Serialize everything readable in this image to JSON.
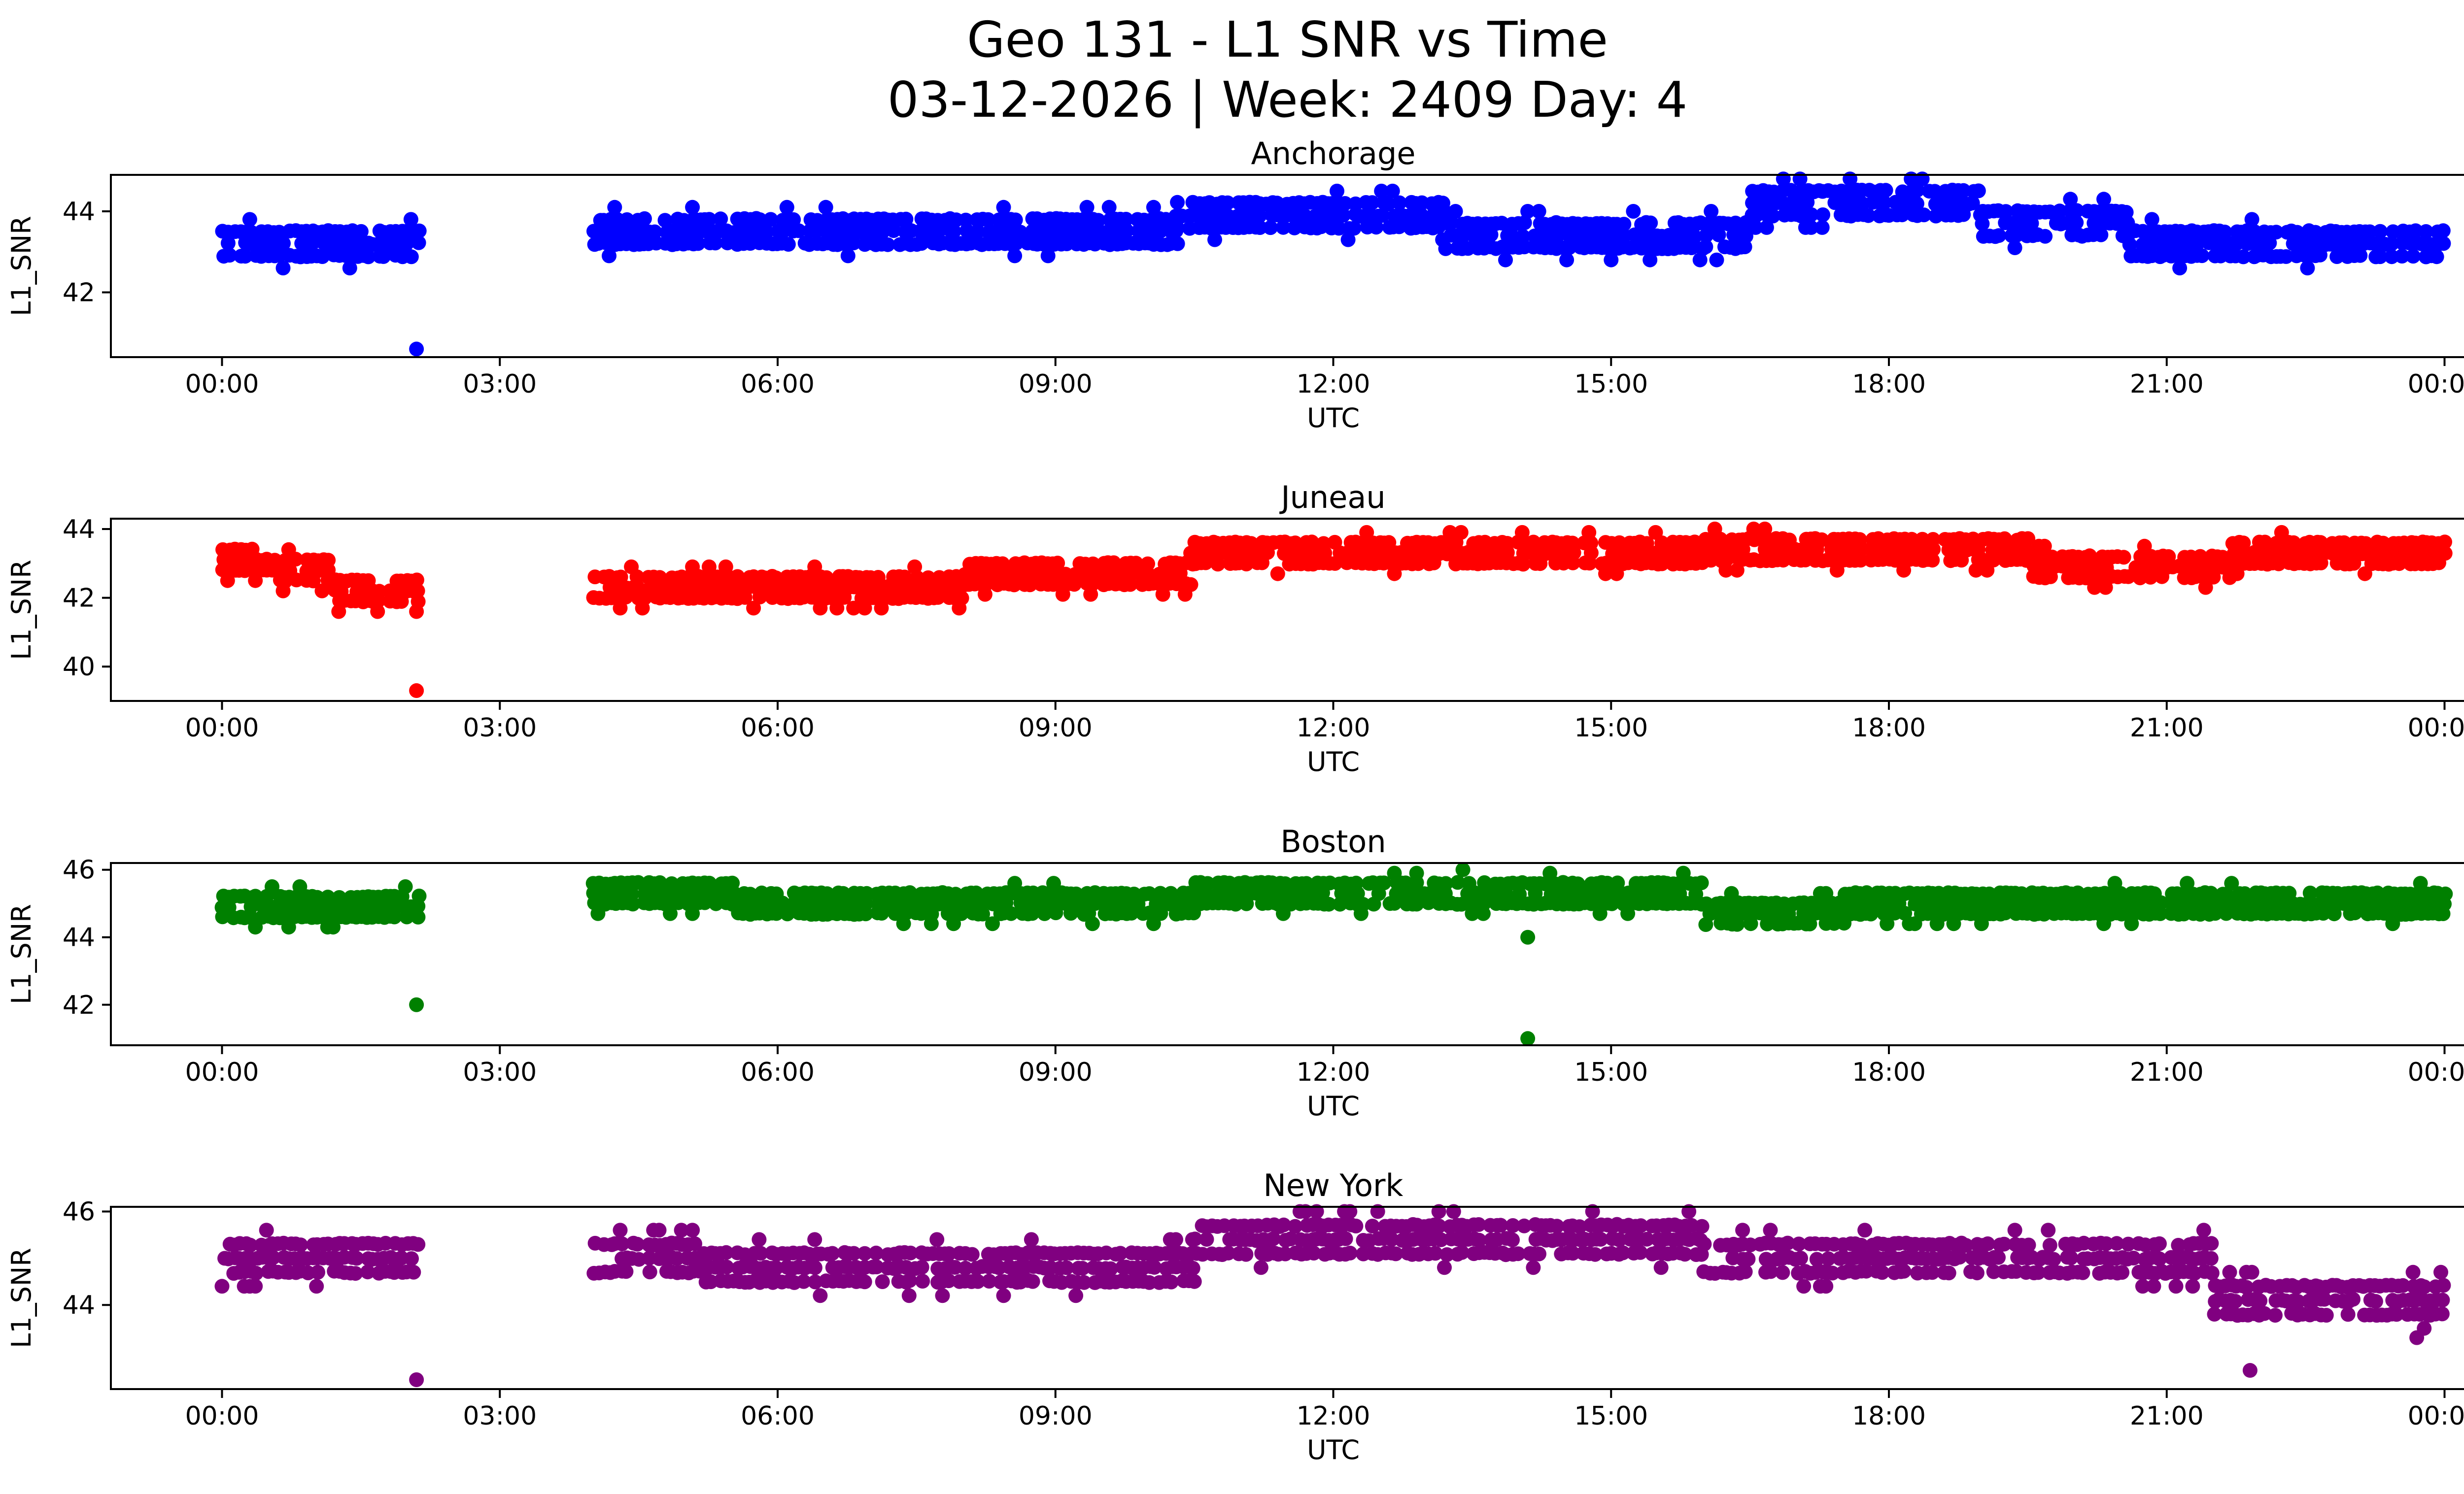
{
  "figure": {
    "title_line1": "Geo 131 - L1 SNR vs Time",
    "title_line2": "03-12-2026 | Week: 2409 Day: 4"
  },
  "chart_data": [
    {
      "type": "scatter",
      "title": "Anchorage",
      "xlabel": "UTC",
      "ylabel": "L1_SNR",
      "color": "#0000ff",
      "xticks": [
        "00:00",
        "03:00",
        "06:00",
        "09:00",
        "12:00",
        "15:00",
        "18:00",
        "21:00",
        "00:00"
      ],
      "xlim_hours": [
        -1.2,
        25.2
      ],
      "ylim": [
        40.4,
        44.9
      ],
      "yticks": [
        42,
        44
      ],
      "gap_hours": [
        2.15,
        4.0
      ],
      "outliers": [
        [
          2.1,
          40.6
        ]
      ],
      "segments": [
        {
          "from": 0.0,
          "to": 2.15,
          "base": 43.2
        },
        {
          "from": 4.0,
          "to": 10.3,
          "base": 43.5
        },
        {
          "from": 10.3,
          "to": 13.2,
          "base": 43.9
        },
        {
          "from": 13.2,
          "to": 16.5,
          "base": 43.4
        },
        {
          "from": 16.5,
          "to": 19.0,
          "base": 44.2
        },
        {
          "from": 19.0,
          "to": 20.6,
          "base": 43.7
        },
        {
          "from": 20.6,
          "to": 24.0,
          "base": 43.2
        }
      ]
    },
    {
      "type": "scatter",
      "title": "Juneau",
      "xlabel": "UTC",
      "ylabel": "L1_SNR",
      "color": "#ff0000",
      "xticks": [
        "00:00",
        "03:00",
        "06:00",
        "09:00",
        "12:00",
        "15:00",
        "18:00",
        "21:00",
        "00:00"
      ],
      "xlim_hours": [
        -1.2,
        25.2
      ],
      "ylim": [
        39.0,
        44.3
      ],
      "yticks": [
        40,
        42,
        44
      ],
      "gap_hours": [
        2.15,
        4.0
      ],
      "outliers": [
        [
          2.1,
          39.3
        ],
        [
          2.1,
          41.6
        ]
      ],
      "segments": [
        {
          "from": 0.0,
          "to": 0.6,
          "base": 43.1
        },
        {
          "from": 0.6,
          "to": 1.2,
          "base": 42.8
        },
        {
          "from": 1.2,
          "to": 2.15,
          "base": 42.2
        },
        {
          "from": 4.0,
          "to": 8.0,
          "base": 42.3
        },
        {
          "from": 8.0,
          "to": 10.5,
          "base": 42.7
        },
        {
          "from": 10.5,
          "to": 16.0,
          "base": 43.3
        },
        {
          "from": 16.0,
          "to": 19.5,
          "base": 43.4
        },
        {
          "from": 19.5,
          "to": 21.7,
          "base": 42.9
        },
        {
          "from": 21.7,
          "to": 24.0,
          "base": 43.3
        }
      ]
    },
    {
      "type": "scatter",
      "title": "Boston",
      "xlabel": "UTC",
      "ylabel": "L1_SNR",
      "color": "#008000",
      "xticks": [
        "00:00",
        "03:00",
        "06:00",
        "09:00",
        "12:00",
        "15:00",
        "18:00",
        "21:00",
        "00:00"
      ],
      "xlim_hours": [
        -1.2,
        25.2
      ],
      "ylim": [
        40.8,
        46.2
      ],
      "yticks": [
        42,
        44,
        46
      ],
      "gap_hours": [
        2.15,
        4.0
      ],
      "outliers": [
        [
          2.1,
          42.0
        ],
        [
          14.1,
          41.0
        ],
        [
          13.4,
          46.0
        ],
        [
          14.1,
          44.0
        ]
      ],
      "segments": [
        {
          "from": 0.0,
          "to": 2.15,
          "base": 44.9
        },
        {
          "from": 4.0,
          "to": 5.5,
          "base": 45.3
        },
        {
          "from": 5.5,
          "to": 10.5,
          "base": 45.0
        },
        {
          "from": 10.5,
          "to": 16.0,
          "base": 45.3
        },
        {
          "from": 16.0,
          "to": 17.5,
          "base": 44.7
        },
        {
          "from": 17.5,
          "to": 24.0,
          "base": 45.0
        }
      ]
    },
    {
      "type": "scatter",
      "title": "New York",
      "xlabel": "UTC",
      "ylabel": "L1_SNR",
      "color": "#800080",
      "xticks": [
        "00:00",
        "03:00",
        "06:00",
        "09:00",
        "12:00",
        "15:00",
        "18:00",
        "21:00",
        "00:00"
      ],
      "xlim_hours": [
        -1.2,
        25.2
      ],
      "ylim": [
        42.2,
        46.1
      ],
      "yticks": [
        44,
        46
      ],
      "gap_hours": [
        2.15,
        4.0
      ],
      "outliers": [
        [
          2.1,
          42.4
        ],
        [
          21.9,
          42.6
        ],
        [
          23.7,
          43.3
        ],
        [
          13.3,
          46.0
        ],
        [
          14.8,
          46.0
        ]
      ],
      "segments": [
        {
          "from": 0.0,
          "to": 2.15,
          "base": 45.0
        },
        {
          "from": 4.0,
          "to": 5.2,
          "base": 45.0
        },
        {
          "from": 5.2,
          "to": 10.5,
          "base": 44.8
        },
        {
          "from": 10.5,
          "to": 16.0,
          "base": 45.4
        },
        {
          "from": 16.0,
          "to": 21.5,
          "base": 45.0
        },
        {
          "from": 21.5,
          "to": 24.0,
          "base": 44.1
        }
      ]
    }
  ]
}
